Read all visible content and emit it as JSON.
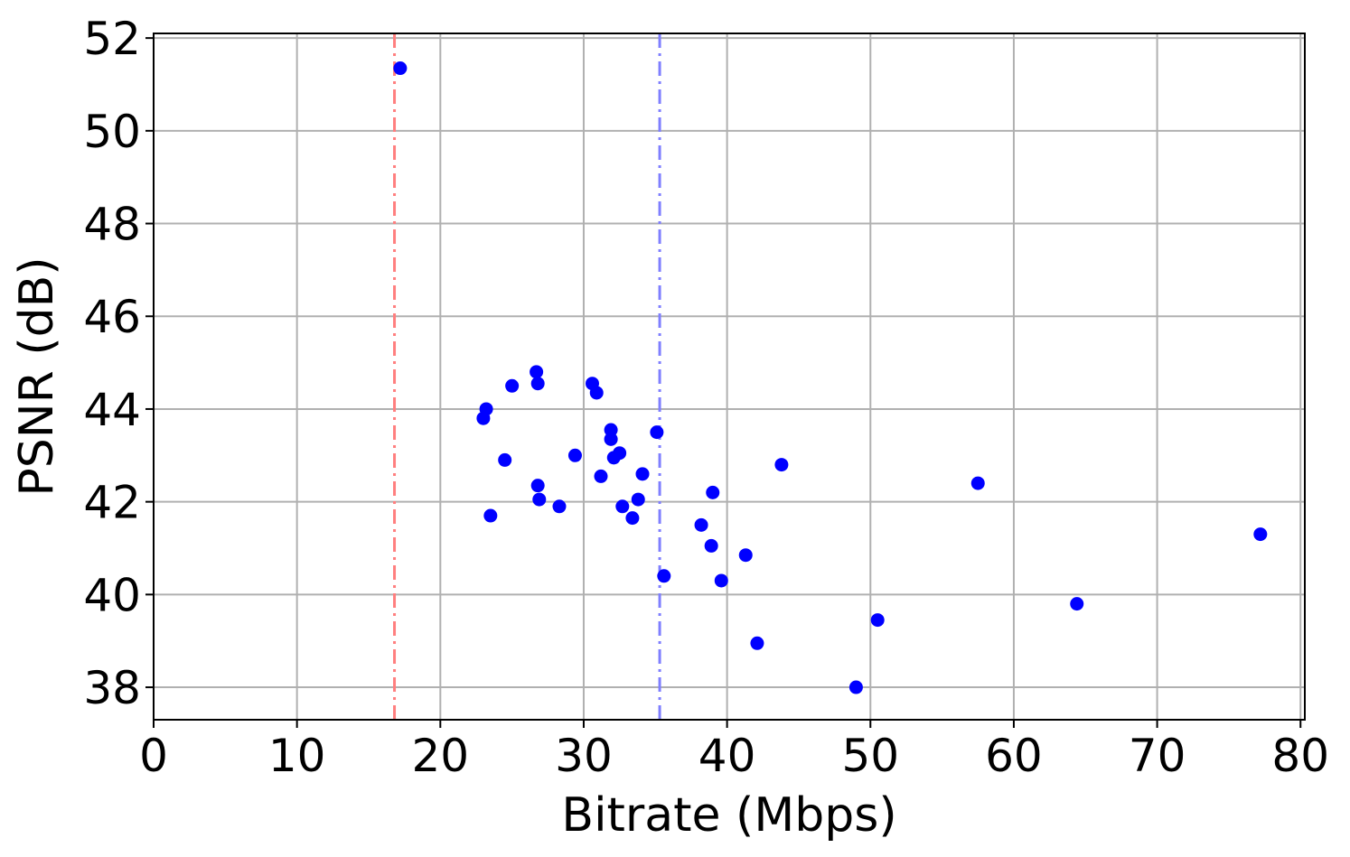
{
  "chart_data": {
    "type": "scatter",
    "title": "",
    "xlabel": "Bitrate (Mbps)",
    "ylabel": "PSNR (dB)",
    "xlim": [
      0,
      80.3
    ],
    "ylim": [
      37.3,
      52.1
    ],
    "xticks": [
      0,
      10,
      20,
      30,
      40,
      50,
      60,
      70,
      80
    ],
    "yticks": [
      38,
      40,
      42,
      44,
      46,
      48,
      50,
      52
    ],
    "grid": true,
    "point_color": "#0000ff",
    "reference_lines": [
      {
        "x": 16.8,
        "color": "#ff7f7f",
        "style": "dash-dot"
      },
      {
        "x": 35.3,
        "color": "#7f7fff",
        "style": "dash-dot"
      }
    ],
    "points": [
      {
        "x": 17.2,
        "y": 51.35
      },
      {
        "x": 23.0,
        "y": 43.8
      },
      {
        "x": 23.2,
        "y": 44.0
      },
      {
        "x": 23.5,
        "y": 41.7
      },
      {
        "x": 24.5,
        "y": 42.9
      },
      {
        "x": 25.0,
        "y": 44.5
      },
      {
        "x": 26.7,
        "y": 44.8
      },
      {
        "x": 26.8,
        "y": 44.55
      },
      {
        "x": 26.8,
        "y": 42.35
      },
      {
        "x": 26.9,
        "y": 42.05
      },
      {
        "x": 28.3,
        "y": 41.9
      },
      {
        "x": 29.4,
        "y": 43.0
      },
      {
        "x": 30.6,
        "y": 44.55
      },
      {
        "x": 30.9,
        "y": 44.35
      },
      {
        "x": 31.2,
        "y": 42.55
      },
      {
        "x": 31.9,
        "y": 43.55
      },
      {
        "x": 31.9,
        "y": 43.35
      },
      {
        "x": 32.1,
        "y": 42.95
      },
      {
        "x": 32.5,
        "y": 43.05
      },
      {
        "x": 32.7,
        "y": 41.9
      },
      {
        "x": 33.4,
        "y": 41.65
      },
      {
        "x": 33.8,
        "y": 42.05
      },
      {
        "x": 34.1,
        "y": 42.6
      },
      {
        "x": 35.1,
        "y": 43.5
      },
      {
        "x": 35.6,
        "y": 40.4
      },
      {
        "x": 38.2,
        "y": 41.5
      },
      {
        "x": 38.9,
        "y": 41.05
      },
      {
        "x": 39.0,
        "y": 42.2
      },
      {
        "x": 39.6,
        "y": 40.3
      },
      {
        "x": 41.3,
        "y": 40.85
      },
      {
        "x": 42.1,
        "y": 38.95
      },
      {
        "x": 43.8,
        "y": 42.8
      },
      {
        "x": 49.0,
        "y": 38.0
      },
      {
        "x": 50.5,
        "y": 39.45
      },
      {
        "x": 57.5,
        "y": 42.4
      },
      {
        "x": 64.4,
        "y": 39.8
      },
      {
        "x": 77.2,
        "y": 41.3
      }
    ]
  }
}
